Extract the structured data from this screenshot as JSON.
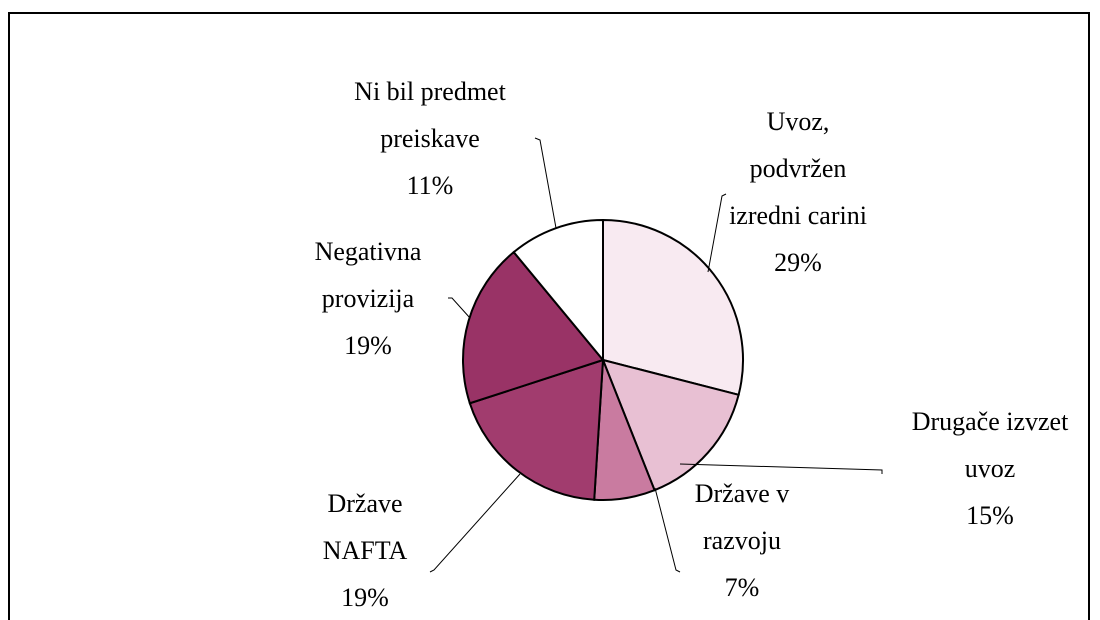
{
  "chart_data": {
    "type": "pie",
    "categories": [
      "Uvoz,\npodvržen\nizredni carini",
      "Drugače izvzet\nuvoz",
      "Države v\nrazvoju",
      "Države\nNAFTA",
      "Negativna\nprovizija",
      "Ni bil predmet\npreiskave"
    ],
    "values": [
      29,
      15,
      7,
      19,
      19,
      11
    ],
    "value_labels": [
      "29%",
      "15%",
      "7%",
      "19%",
      "19%",
      "11%"
    ],
    "colors": [
      "#f8eaf1",
      "#e8c0d3",
      "#c97ba0",
      "#a13c6e",
      "#993366",
      "#ffffff"
    ]
  }
}
